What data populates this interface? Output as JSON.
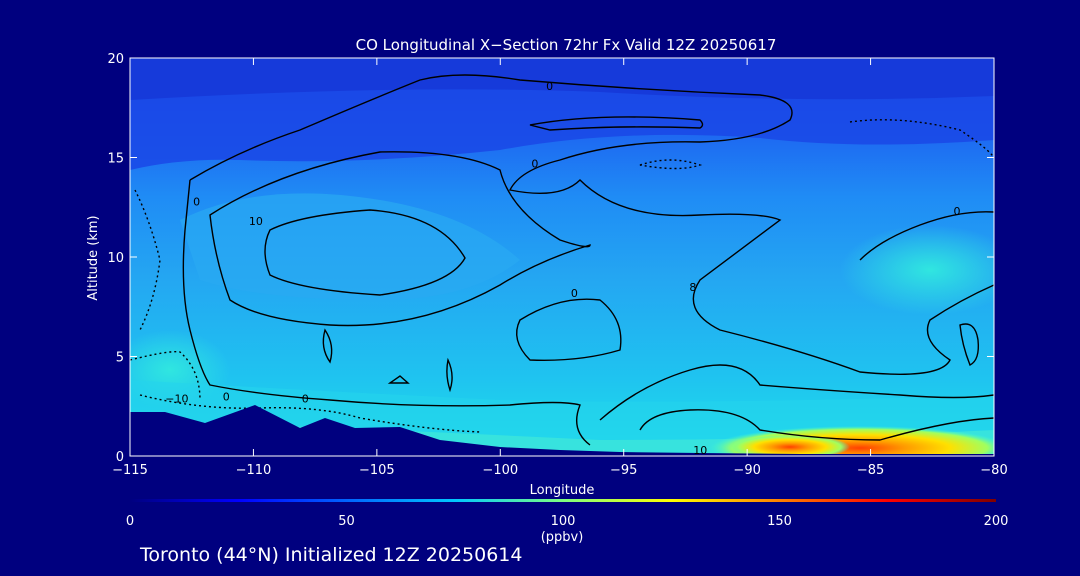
{
  "chart_data": {
    "type": "heatmap",
    "title": "CO Longitudinal X−Section 72hr  Fx Valid 12Z 20250617",
    "xlabel": "Longitude",
    "ylabel": "Altitude (km)",
    "xlim": [
      -115,
      -80
    ],
    "ylim": [
      0,
      20
    ],
    "x_ticks": [
      -115,
      -110,
      -105,
      -100,
      -95,
      -90,
      -85,
      -80
    ],
    "x_tick_labels": [
      "−115",
      "−110",
      "−105",
      "−100",
      "−95",
      "−90",
      "−85",
      "−80"
    ],
    "y_ticks": [
      0,
      5,
      10,
      15,
      20
    ],
    "y_tick_labels": [
      "0",
      "5",
      "10",
      "15",
      "20"
    ],
    "colorbar": {
      "range": [
        0,
        200
      ],
      "ticks": [
        0,
        50,
        100,
        150,
        200
      ],
      "tick_labels": [
        "0",
        "50",
        "100",
        "150",
        "200"
      ],
      "unit_label": "(ppbv)"
    },
    "contour_labels": [
      {
        "lon": -98,
        "alt": 18.6,
        "text": "0"
      },
      {
        "lon": -98.6,
        "alt": 14.7,
        "text": "0"
      },
      {
        "lon": -112.3,
        "alt": 12.8,
        "text": "0"
      },
      {
        "lon": -109.9,
        "alt": 11.8,
        "text": "10"
      },
      {
        "lon": -97.0,
        "alt": 8.2,
        "text": "0"
      },
      {
        "lon": -92.2,
        "alt": 8.5,
        "text": "8"
      },
      {
        "lon": -81.5,
        "alt": 12.3,
        "text": "0"
      },
      {
        "lon": -107.9,
        "alt": 2.9,
        "text": "0"
      },
      {
        "lon": -111.1,
        "alt": 3.0,
        "text": "0"
      },
      {
        "lon": -113.1,
        "alt": 2.9,
        "text": "−10"
      },
      {
        "lon": -91.9,
        "alt": 0.3,
        "text": "10"
      }
    ],
    "field_description_bands": [
      {
        "alt_range": [
          16,
          20
        ],
        "co": 25
      },
      {
        "alt_range": [
          12,
          16
        ],
        "co": 40
      },
      {
        "alt_range": [
          4,
          12
        ],
        "co": 60
      },
      {
        "alt_range": [
          0,
          4
        ],
        "co": 75
      }
    ],
    "surface_maximum": {
      "lon_range": [
        -92,
        -80
      ],
      "alt_range": [
        0,
        1.2
      ],
      "co": 150
    }
  },
  "footer": {
    "caption": "Toronto (44°N) Initialized 12Z 20250614"
  },
  "colors": {
    "background": "#00007f",
    "axis": "#ffffff",
    "contour": "#000000",
    "terrain": "#00007f"
  }
}
